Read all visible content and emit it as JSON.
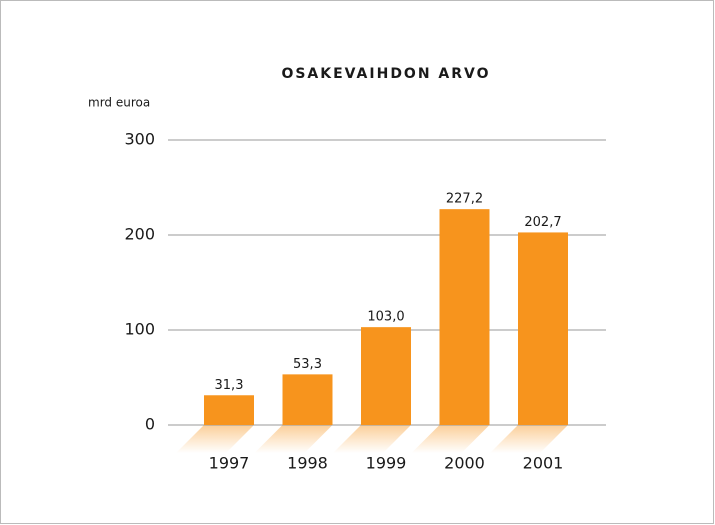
{
  "chart_data": {
    "type": "bar",
    "title": "OSAKEVAIHDON ARVO",
    "y_label": "mrd euroa",
    "categories": [
      "1997",
      "1998",
      "1999",
      "2000",
      "2001"
    ],
    "values": [
      31.3,
      53.3,
      103.0,
      227.2,
      202.7
    ],
    "value_labels": [
      "31,3",
      "53,3",
      "103,0",
      "227,2",
      "202,7"
    ],
    "color": "#f7941d",
    "ylim": [
      0,
      300
    ],
    "yticks": [
      0,
      100,
      200,
      300
    ],
    "grid": true
  }
}
